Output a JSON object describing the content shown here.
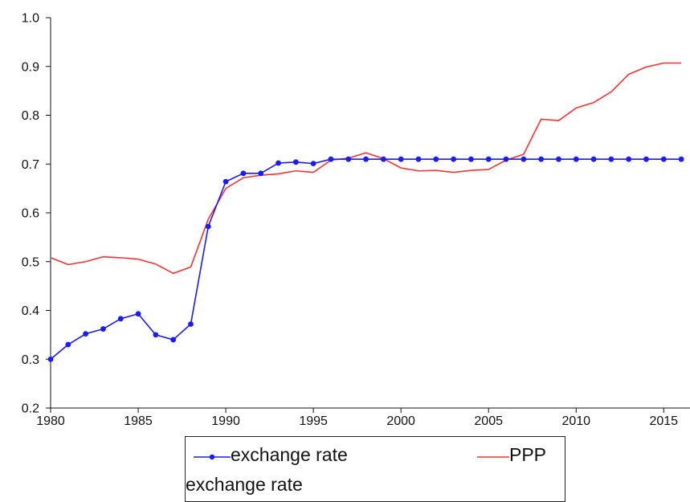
{
  "chart_data": {
    "type": "line",
    "title": "",
    "xlabel": "",
    "ylabel": "",
    "xlim": [
      1980,
      2016.5
    ],
    "ylim": [
      0.2,
      1.0
    ],
    "x_ticks": [
      1980,
      1985,
      1990,
      1995,
      2000,
      2005,
      2010,
      2015
    ],
    "y_ticks": [
      "0.2",
      "0.3",
      "0.4",
      "0.5",
      "0.6",
      "0.7",
      "0.8",
      "0.9",
      "1.0"
    ],
    "grid": false,
    "legend_position": "bottom",
    "x": [
      1980,
      1981,
      1982,
      1983,
      1984,
      1985,
      1986,
      1987,
      1988,
      1989,
      1990,
      1991,
      1992,
      1993,
      1994,
      1995,
      1996,
      1997,
      1998,
      1999,
      2000,
      2001,
      2002,
      2003,
      2004,
      2005,
      2006,
      2007,
      2008,
      2009,
      2010,
      2011,
      2012,
      2013,
      2014,
      2015,
      2016
    ],
    "series": [
      {
        "name": "exchange rate",
        "color": "#1a1aff",
        "marker": "circle",
        "values": [
          0.3,
          0.33,
          0.352,
          0.362,
          0.383,
          0.393,
          0.35,
          0.34,
          0.372,
          0.572,
          0.664,
          0.681,
          0.681,
          0.702,
          0.704,
          0.701,
          0.71,
          0.71,
          0.71,
          0.71,
          0.71,
          0.71,
          0.71,
          0.71,
          0.71,
          0.71,
          0.71,
          0.71,
          0.71,
          0.71,
          0.71,
          0.71,
          0.71,
          0.71,
          0.71,
          0.71,
          0.71
        ]
      },
      {
        "name": "PPP",
        "color": "#ff3030",
        "marker": "none",
        "values": [
          0.508,
          0.494,
          0.5,
          0.51,
          0.508,
          0.505,
          0.495,
          0.476,
          0.489,
          0.587,
          0.65,
          0.672,
          0.677,
          0.68,
          0.686,
          0.683,
          0.708,
          0.712,
          0.723,
          0.711,
          0.692,
          0.686,
          0.687,
          0.683,
          0.687,
          0.689,
          0.708,
          0.72,
          0.792,
          0.789,
          0.815,
          0.826,
          0.848,
          0.884,
          0.899,
          0.907,
          0.907
        ]
      }
    ]
  },
  "legend": {
    "exchange_label": "exchange rate",
    "ppp_label": "PPP",
    "note": "exchange rate"
  }
}
